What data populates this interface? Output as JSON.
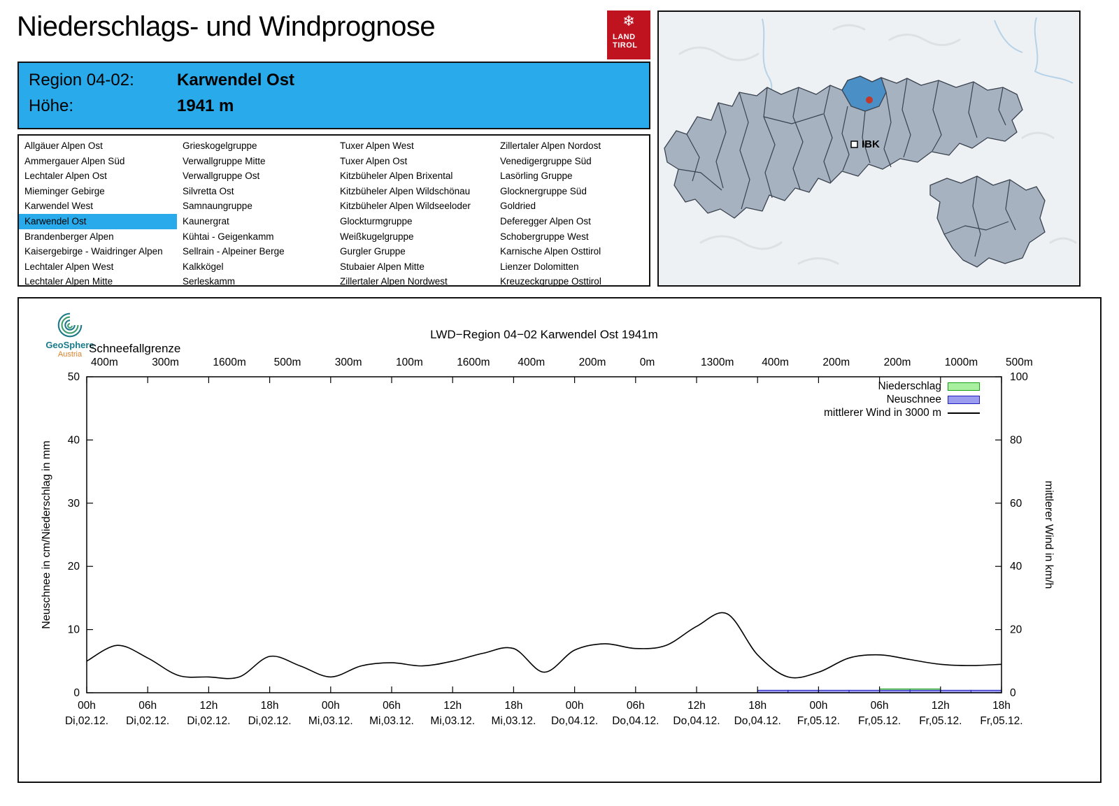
{
  "page": {
    "title": "Niederschlags- und Windprognose"
  },
  "logo": {
    "line1": "LAND",
    "line2": "TIROL"
  },
  "colors": {
    "header_blue": "#29aaea",
    "selected_blue": "#29aaea",
    "map_highlight_blue": "#4a90c6",
    "land_tirol_red": "#c01320",
    "niederschlag_fill": "#a8f0a0",
    "niederschlag_stroke": "#18a018",
    "neuschnee_fill": "#9b9bf0",
    "neuschnee_stroke": "#2020c0",
    "wind_line": "#000000"
  },
  "region_header": {
    "region_label": "Region 04-02:",
    "region_value": "Karwendel Ost",
    "altitude_label": "Höhe:",
    "altitude_value": "1941 m"
  },
  "region_list": {
    "selected": "Karwendel Ost",
    "columns": [
      [
        "Allgäuer Alpen Ost",
        "Ammergauer Alpen Süd",
        "Lechtaler Alpen Ost",
        "Mieminger Gebirge",
        "Karwendel West",
        "Karwendel Ost",
        "Brandenberger Alpen",
        "Kaisergebirge - Waidringer Alpen",
        "Lechtaler Alpen West",
        "Lechtaler Alpen Mitte"
      ],
      [
        "Grieskogelgruppe",
        "Verwallgruppe Mitte",
        "Verwallgruppe Ost",
        "Silvretta Ost",
        "Samnaungruppe",
        "Kaunergrat",
        "Kühtai - Geigenkamm",
        "Sellrain - Alpeiner Berge",
        "Kalkkögel",
        "Serleskamm"
      ],
      [
        "Tuxer Alpen West",
        "Tuxer Alpen Ost",
        "Kitzbüheler Alpen Brixental",
        "Kitzbüheler Alpen Wildschönau",
        "Kitzbüheler Alpen Wildseeloder",
        "Glockturmgruppe",
        "Weißkugelgruppe",
        "Gurgler Gruppe",
        "Stubaier Alpen Mitte",
        "Zillertaler Alpen Nordwest"
      ],
      [
        "Zillertaler Alpen Nordost",
        "Venedigergruppe Süd",
        "Lasörling Gruppe",
        "Glocknergruppe Süd",
        "Goldried",
        "Deferegger Alpen Ost",
        "Schobergruppe West",
        "Karnische Alpen Osttirol",
        "Lienzer Dolomitten",
        "Kreuzeckgruppe Osttirol"
      ]
    ]
  },
  "map": {
    "ibk_label": "IBK"
  },
  "chart": {
    "title": "LWD−Region 04−02 Karwendel Ost 1941m",
    "schneefallgrenze_label": "Schneefallgrenze",
    "ylabel_left": "Neuschnee in cm/Niederschlag in mm",
    "ylabel_right": "mittlerer Wind in km/h",
    "geosphere_line1": "GeoSphere",
    "geosphere_line2": "Austria",
    "legend": [
      {
        "label": "Niederschlag",
        "type": "box",
        "fill": "#a8f0a0",
        "stroke": "#18a018"
      },
      {
        "label": "Neuschnee",
        "type": "box",
        "fill": "#9b9bf0",
        "stroke": "#2020c0"
      },
      {
        "label": "mittlerer Wind in 3000 m",
        "type": "line",
        "color": "#000000"
      }
    ]
  },
  "chart_data": {
    "type": "line+bar",
    "title": "LWD−Region 04−02 Karwendel Ost 1941m",
    "x_unit": "hours since Di 02.12. 00h",
    "x_range_hours": [
      0,
      90
    ],
    "x_ticks": [
      {
        "hour": 0,
        "time": "00h",
        "day": "Di,02.12."
      },
      {
        "hour": 6,
        "time": "06h",
        "day": "Di,02.12."
      },
      {
        "hour": 12,
        "time": "12h",
        "day": "Di,02.12."
      },
      {
        "hour": 18,
        "time": "18h",
        "day": "Di,02.12."
      },
      {
        "hour": 24,
        "time": "00h",
        "day": "Mi,03.12."
      },
      {
        "hour": 30,
        "time": "06h",
        "day": "Mi,03.12."
      },
      {
        "hour": 36,
        "time": "12h",
        "day": "Mi,03.12."
      },
      {
        "hour": 42,
        "time": "18h",
        "day": "Mi,03.12."
      },
      {
        "hour": 48,
        "time": "00h",
        "day": "Do,04.12."
      },
      {
        "hour": 54,
        "time": "06h",
        "day": "Do,04.12."
      },
      {
        "hour": 60,
        "time": "12h",
        "day": "Do,04.12."
      },
      {
        "hour": 66,
        "time": "18h",
        "day": "Do,04.12."
      },
      {
        "hour": 72,
        "time": "00h",
        "day": "Fr,05.12."
      },
      {
        "hour": 78,
        "time": "06h",
        "day": "Fr,05.12."
      },
      {
        "hour": 84,
        "time": "12h",
        "day": "Fr,05.12."
      },
      {
        "hour": 90,
        "time": "18h",
        "day": "Fr,05.12."
      }
    ],
    "schneefallgrenze_m": [
      "400m",
      "300m",
      "1600m",
      "500m",
      "300m",
      "100m",
      "1600m",
      "400m",
      "200m",
      "0m",
      "1300m",
      "400m",
      "200m",
      "200m",
      "1000m",
      "500m"
    ],
    "axes": {
      "left_label": "Neuschnee in cm/Niederschlag in mm",
      "left_range": [
        0,
        50
      ],
      "left_ticks": [
        0,
        10,
        20,
        30,
        40,
        50
      ],
      "right_label": "mittlerer Wind in km/h",
      "right_range": [
        0,
        100
      ],
      "right_ticks": [
        0,
        20,
        40,
        60,
        80,
        100
      ],
      "grid": false
    },
    "wind_3000m_kmh": {
      "hours": [
        0,
        3,
        6,
        9,
        12,
        15,
        18,
        21,
        24,
        27,
        30,
        33,
        36,
        39,
        42,
        45,
        48,
        51,
        54,
        57,
        60,
        63,
        66,
        69,
        72,
        75,
        78,
        81,
        84,
        87,
        90
      ],
      "values": [
        10,
        15,
        11,
        5.5,
        5,
        5,
        11.5,
        8.5,
        5,
        8.5,
        9.5,
        8.5,
        10,
        12.5,
        14,
        6.5,
        13.5,
        15.5,
        14,
        15,
        21,
        25,
        12,
        5,
        6.5,
        11,
        12,
        10.5,
        9,
        8.6,
        9
      ]
    },
    "niederschlag_mm": {
      "interval_hours": 3,
      "start_hour": 0,
      "values": [
        0,
        0,
        0,
        0,
        0,
        0,
        0,
        0,
        0,
        0,
        0,
        0,
        0,
        0,
        0,
        0,
        0,
        0,
        0,
        0,
        0,
        0,
        0,
        0,
        0,
        0,
        0.6,
        0.6,
        0,
        0
      ]
    },
    "neuschnee_cm": {
      "interval_hours": 3,
      "start_hour": 0,
      "values": [
        0,
        0,
        0,
        0,
        0,
        0,
        0,
        0,
        0,
        0,
        0,
        0,
        0,
        0,
        0,
        0,
        0,
        0,
        0,
        0,
        0,
        0,
        0.4,
        0.4,
        0.4,
        0.4,
        0.4,
        0.4,
        0.4,
        0.4
      ]
    }
  }
}
